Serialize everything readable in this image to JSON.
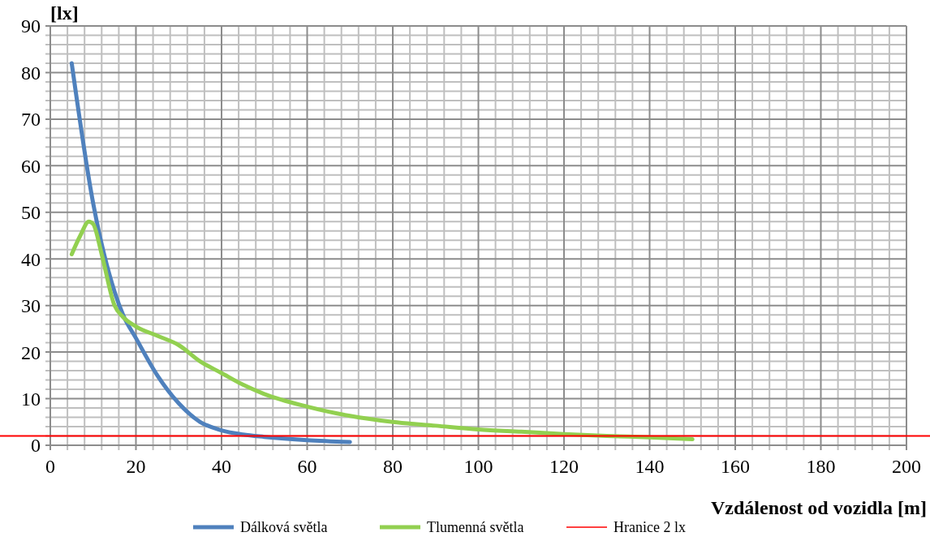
{
  "chart_data": {
    "type": "line",
    "xlabel": "Vzdálenost od vozidla [m]",
    "ylabel": "[lx]",
    "xlim": [
      0,
      200
    ],
    "xticks": [
      0,
      20,
      40,
      60,
      80,
      100,
      120,
      140,
      160,
      180,
      200
    ],
    "ylim": [
      0,
      90
    ],
    "yticks": [
      0,
      10,
      20,
      30,
      40,
      50,
      60,
      70,
      80,
      90
    ],
    "grid": true,
    "legend": "bottom",
    "line_style": "solid",
    "marker": "none",
    "series": [
      {
        "name": "Dálková světla",
        "color": "#4f81bd",
        "x": [
          5,
          10,
          15,
          17,
          20,
          25,
          30,
          35,
          40,
          45,
          50,
          60,
          70
        ],
        "values": [
          82,
          52,
          33,
          28,
          23,
          15,
          9,
          5,
          3.2,
          2.3,
          1.8,
          1.1,
          0.7
        ]
      },
      {
        "name": "Tlumenná světla",
        "color": "#92d050",
        "x": [
          5,
          7,
          9,
          10,
          12,
          15,
          17,
          20,
          25,
          30,
          35,
          40,
          45,
          50,
          60,
          70,
          80,
          90,
          100,
          110,
          120,
          130,
          140,
          150
        ],
        "values": [
          41,
          45,
          48,
          47.5,
          41,
          30,
          27.5,
          25.5,
          23.5,
          21.5,
          18,
          15.5,
          13,
          11,
          8.3,
          6.3,
          5,
          4.2,
          3.4,
          2.9,
          2.4,
          2,
          1.7,
          1.3
        ]
      }
    ],
    "ref_lines": [
      {
        "axis": "y",
        "value": 2,
        "label": "Hranice 2 lx",
        "color": "#ff0000",
        "line_style": "solid"
      }
    ]
  }
}
